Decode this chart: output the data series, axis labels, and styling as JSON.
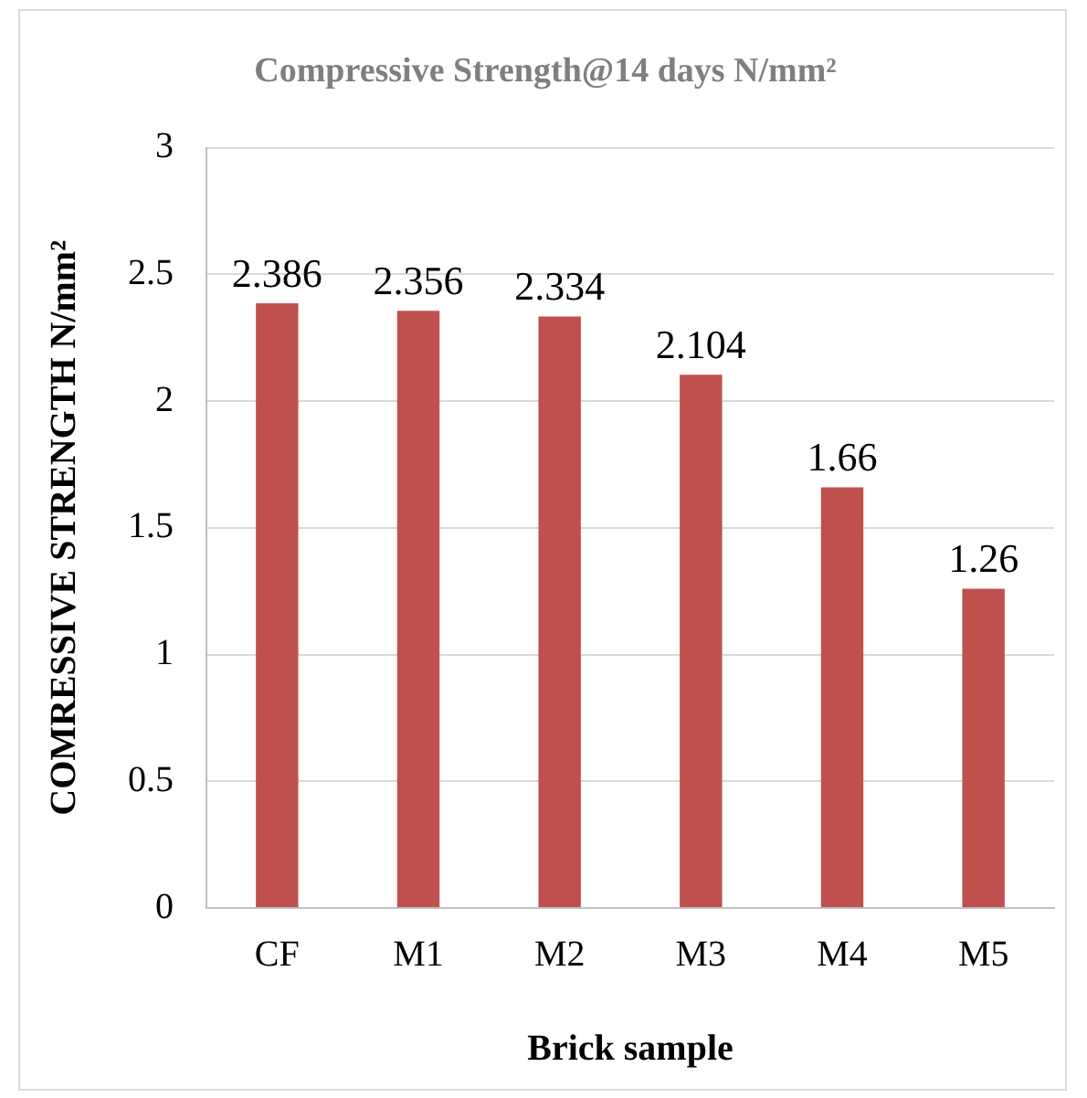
{
  "chart_data": {
    "type": "bar",
    "title": "Compressive Strength@14 days N/mm²",
    "xlabel": "Brick sample",
    "ylabel": "COMRESSIVE STRENGTH N/mm²",
    "categories": [
      "CF",
      "M1",
      "M2",
      "M3",
      "M4",
      "M5"
    ],
    "values": [
      2.386,
      2.356,
      2.334,
      2.104,
      1.66,
      1.26
    ],
    "color": "#c0504d",
    "ylim": [
      0,
      3
    ],
    "yticks": [
      0,
      0.5,
      1,
      1.5,
      2,
      2.5,
      3
    ],
    "grid": "y",
    "data_labels": true,
    "legend": false
  }
}
